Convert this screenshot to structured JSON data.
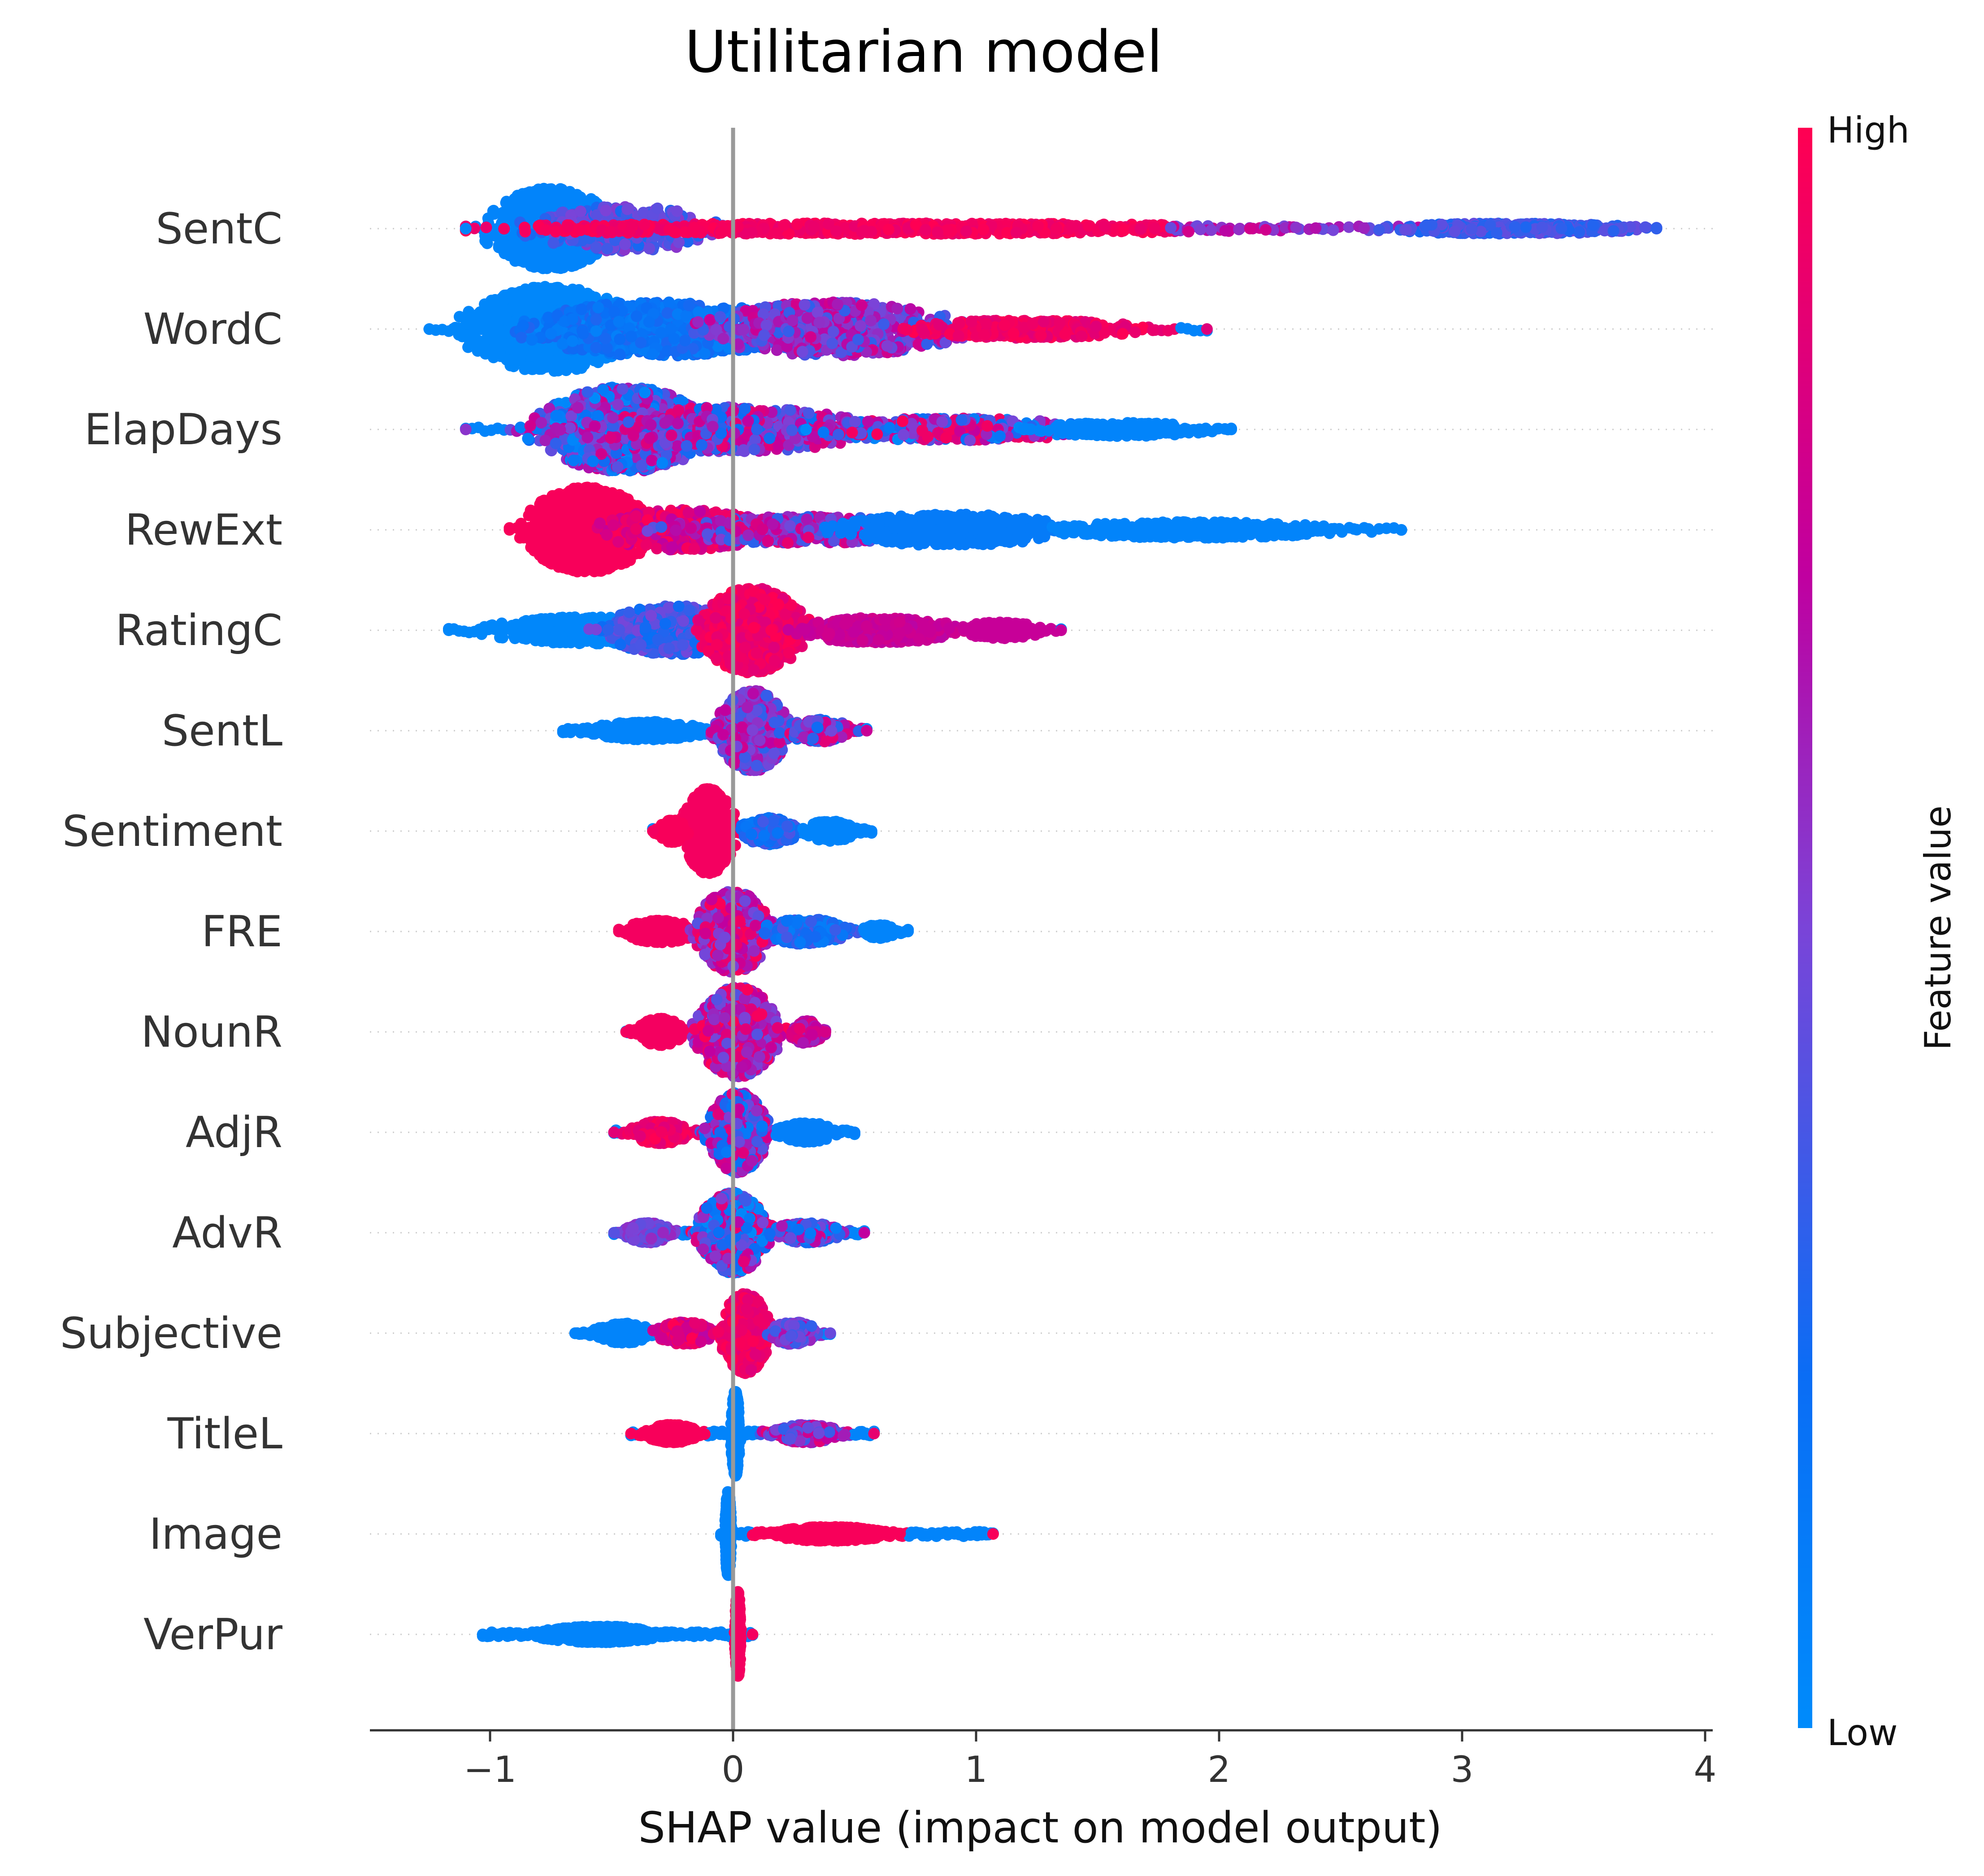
{
  "chart_data": {
    "type": "scatter",
    "title": "Utilitarian model",
    "xlabel": "SHAP value (impact on model output)",
    "ylabel": "",
    "xlim": [
      -1.5,
      4.05
    ],
    "x_ticks": [
      -1,
      0,
      1,
      2,
      3,
      4
    ],
    "x_tick_labels": [
      "−1",
      "0",
      "1",
      "2",
      "3",
      "4"
    ],
    "grid": false,
    "colorbar": {
      "label": "Feature value",
      "high_label": "High",
      "low_label": "Low",
      "low_color": "#008bfb",
      "high_color": "#ff0052"
    },
    "zero_line_color": "#999999",
    "features": [
      {
        "name": "SentC",
        "min": -1.1,
        "max": 3.8,
        "color_trend": "low values negative, mixed spread far positive"
      },
      {
        "name": "WordC",
        "min": -1.25,
        "max": 1.95,
        "color_trend": "low negative, high positive"
      },
      {
        "name": "ElapDays",
        "min": -1.1,
        "max": 2.05,
        "color_trend": "mixed"
      },
      {
        "name": "RewExt",
        "min": -0.92,
        "max": 2.75,
        "color_trend": "high negative, low positive"
      },
      {
        "name": "RatingC",
        "min": -1.17,
        "max": 1.35,
        "color_trend": "low negative, high positive"
      },
      {
        "name": "SentL",
        "min": -0.7,
        "max": 0.55,
        "color_trend": "low negative, mixed positive"
      },
      {
        "name": "Sentiment",
        "min": -0.33,
        "max": 0.57,
        "color_trend": "high negative, low positive"
      },
      {
        "name": "FRE",
        "min": -0.47,
        "max": 0.72,
        "color_trend": "high negative, low positive"
      },
      {
        "name": "NounR",
        "min": -0.44,
        "max": 0.38,
        "color_trend": "high negative, mixed positive"
      },
      {
        "name": "AdjR",
        "min": -0.49,
        "max": 0.5,
        "color_trend": "high negative, low positive"
      },
      {
        "name": "AdvR",
        "min": -0.49,
        "max": 0.54,
        "color_trend": "mixed"
      },
      {
        "name": "Subjective",
        "min": -0.65,
        "max": 0.4,
        "color_trend": "low negative, high positive"
      },
      {
        "name": "TitleL",
        "min": -0.42,
        "max": 0.58,
        "color_trend": "high negative, low positive"
      },
      {
        "name": "Image",
        "min": -0.05,
        "max": 1.07,
        "color_trend": "low near zero, high positive"
      },
      {
        "name": "VerPur",
        "min": -1.03,
        "max": 0.08,
        "color_trend": "low negative, high near zero"
      }
    ]
  }
}
